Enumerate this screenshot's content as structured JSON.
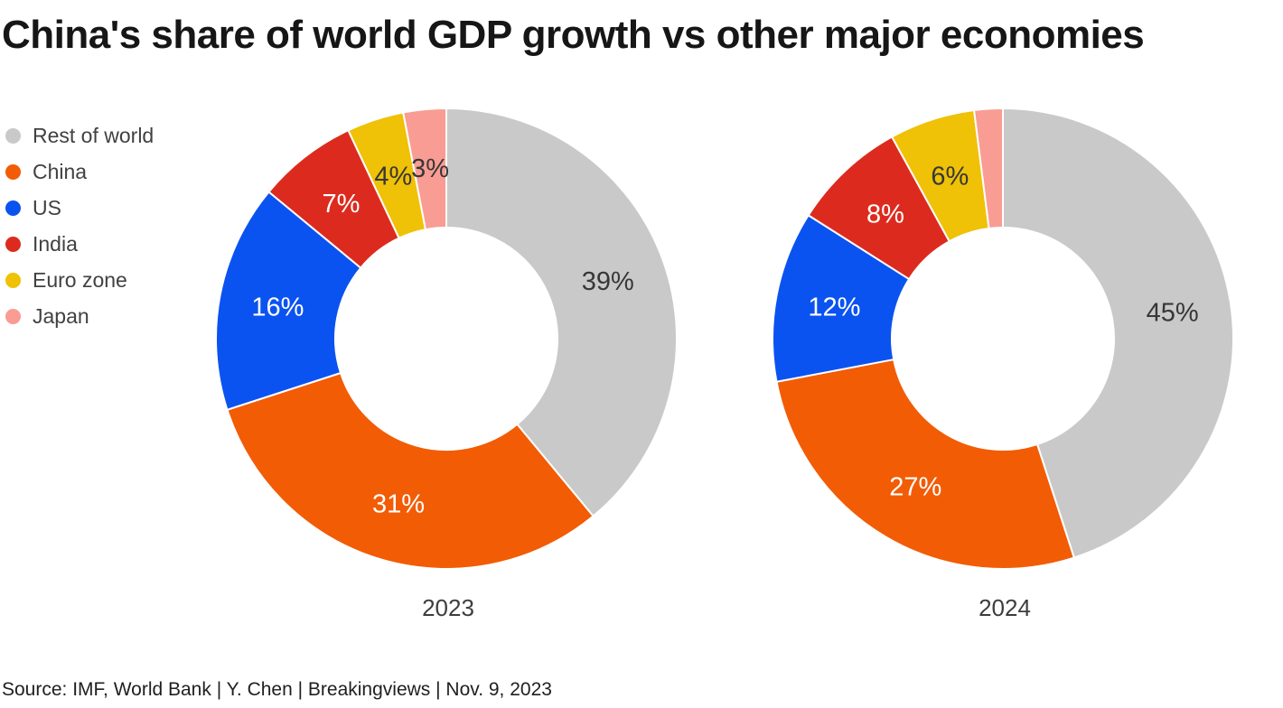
{
  "title": "China's share of world GDP growth vs other major economies",
  "source": "Source: IMF, World Bank | Y. Chen | Breakingviews | Nov. 9, 2023",
  "colors": {
    "rest_of_world": "#c9c9c9",
    "china": "#f25c05",
    "us": "#0b53f0",
    "india": "#dc2b1e",
    "euro_zone": "#efc107",
    "japan": "#f99c93",
    "label_dark": "#373737",
    "label_light": "#ffffff",
    "title_text": "#161616",
    "legend_text": "#414141"
  },
  "legend": {
    "items": [
      {
        "label": "Rest of world",
        "color": "#c9c9c9"
      },
      {
        "label": "China",
        "color": "#f25c05"
      },
      {
        "label": "US",
        "color": "#0b53f0"
      },
      {
        "label": "India",
        "color": "#dc2b1e"
      },
      {
        "label": "Euro zone",
        "color": "#efc107"
      },
      {
        "label": "Japan",
        "color": "#f99c93"
      }
    ]
  },
  "chart_data": [
    {
      "type": "pie",
      "variant": "donut",
      "year": "2023",
      "start_angle_deg": 0,
      "direction": "clockwise",
      "legend_position": "top-left",
      "slices": [
        {
          "name": "Rest of world",
          "value": 39,
          "label": "39%",
          "label_style": "dark"
        },
        {
          "name": "China",
          "value": 31,
          "label": "31%",
          "label_style": "light"
        },
        {
          "name": "US",
          "value": 16,
          "label": "16%",
          "label_style": "light"
        },
        {
          "name": "India",
          "value": 7,
          "label": "7%",
          "label_style": "light"
        },
        {
          "name": "Euro zone",
          "value": 4,
          "label": "4%",
          "label_style": "dark"
        },
        {
          "name": "Japan",
          "value": 3,
          "label": "3%",
          "label_style": "dark"
        }
      ]
    },
    {
      "type": "pie",
      "variant": "donut",
      "year": "2024",
      "start_angle_deg": 0,
      "direction": "clockwise",
      "slices": [
        {
          "name": "Rest of world",
          "value": 45,
          "label": "45%",
          "label_style": "dark"
        },
        {
          "name": "China",
          "value": 27,
          "label": "27%",
          "label_style": "light"
        },
        {
          "name": "US",
          "value": 12,
          "label": "12%",
          "label_style": "light"
        },
        {
          "name": "India",
          "value": 8,
          "label": "8%",
          "label_style": "light"
        },
        {
          "name": "Euro zone",
          "value": 6,
          "label": "6%",
          "label_style": "dark"
        },
        {
          "name": "Japan",
          "value": 2,
          "label": "",
          "label_style": "dark"
        }
      ]
    }
  ]
}
